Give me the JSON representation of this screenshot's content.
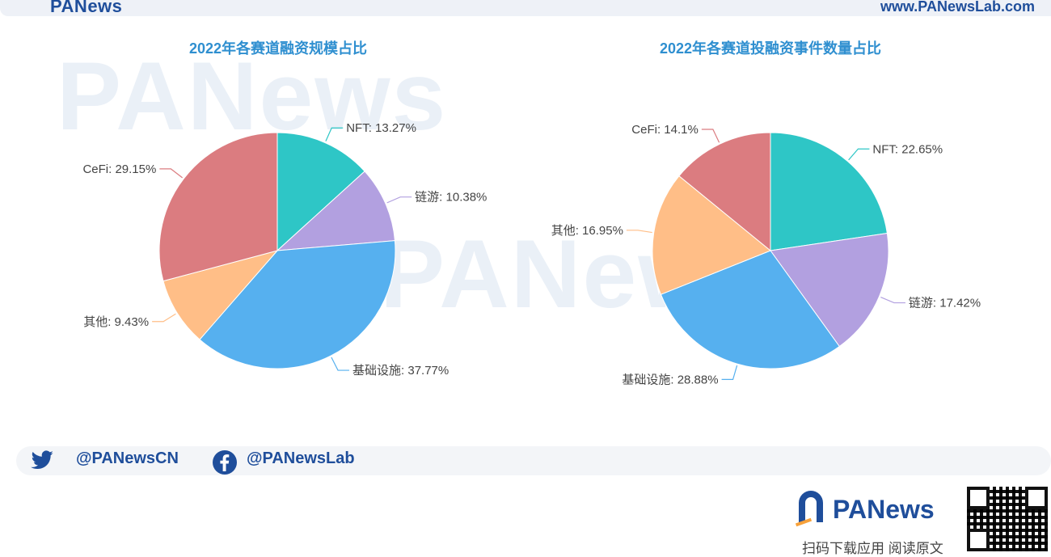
{
  "branding": {
    "top_name": "PANews",
    "website": "www.PANewsLab.com",
    "twitter": "@PANewsCN",
    "facebook": "@PANewsLab",
    "bottom_name": "PANews",
    "bottom_caption": "扫码下载应用 阅读原文",
    "watermark": "PANews"
  },
  "colors": {
    "title": "#2f8fd0",
    "brand": "#1f4e9b",
    "NFT": "#2ec6c6",
    "链游": "#b2a0e0",
    "基础设施": "#56b0ef",
    "其他": "#ffbe87",
    "CeFi": "#db7c80"
  },
  "chart_data": [
    {
      "type": "pie",
      "title": "2022年各赛道融资规模占比",
      "slices": [
        {
          "label": "NFT",
          "value": 13.27,
          "text": "NFT: 13.27%"
        },
        {
          "label": "链游",
          "value": 10.38,
          "text": "链游: 10.38%"
        },
        {
          "label": "基础设施",
          "value": 37.77,
          "text": "基础设施: 37.77%"
        },
        {
          "label": "其他",
          "value": 9.43,
          "text": "其他: 9.43%"
        },
        {
          "label": "CeFi",
          "value": 29.15,
          "text": "CeFi: 29.15%"
        }
      ]
    },
    {
      "type": "pie",
      "title": "2022年各赛道投融资事件数量占比",
      "slices": [
        {
          "label": "NFT",
          "value": 22.65,
          "text": "NFT: 22.65%"
        },
        {
          "label": "链游",
          "value": 17.42,
          "text": "链游: 17.42%"
        },
        {
          "label": "基础设施",
          "value": 28.88,
          "text": "基础设施: 28.88%"
        },
        {
          "label": "其他",
          "value": 16.95,
          "text": "其他: 16.95%"
        },
        {
          "label": "CeFi",
          "value": 14.1,
          "text": "CeFi: 14.1%"
        }
      ]
    }
  ]
}
